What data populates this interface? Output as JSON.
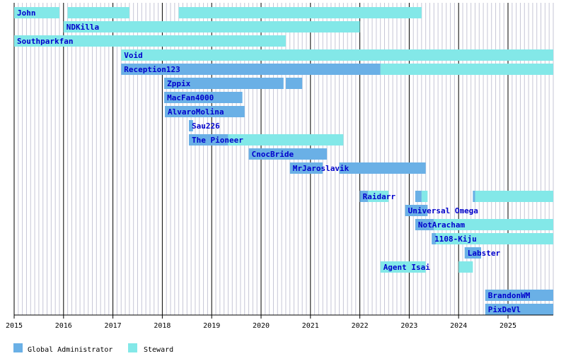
{
  "colors": {
    "background": "#ffffff",
    "gridline_month": "#c6c6d6",
    "gridline_year": "#000000",
    "global_administrator": "#6ab0e6",
    "steward": "#83e8e8",
    "label": "#0000cc"
  },
  "legend": [
    {
      "key": "global_administrator",
      "label": "Global Administrator"
    },
    {
      "key": "steward",
      "label": "Steward"
    }
  ],
  "chart_data": {
    "type": "timeline",
    "title": "",
    "xlabel": "",
    "ylabel": "",
    "x_range": [
      "2015-01-01",
      "2025-12-01"
    ],
    "x_ticks": [
      "2015",
      "2016",
      "2017",
      "2018",
      "2019",
      "2020",
      "2021",
      "2022",
      "2023",
      "2024",
      "2025"
    ],
    "grid": "monthly",
    "legend_position": "bottom-left",
    "rows": [
      {
        "name": "John",
        "spans": [
          {
            "role": "steward",
            "start": "2015-01-01",
            "end": "2015-12-01"
          },
          {
            "role": "steward",
            "start": "2016-02-01",
            "end": "2017-05-01"
          },
          {
            "role": "steward",
            "start": "2018-05-01",
            "end": "2023-04-01"
          }
        ]
      },
      {
        "name": "NDKilla",
        "spans": [
          {
            "role": "steward",
            "start": "2016-01-01",
            "end": "2022-01-01"
          }
        ]
      },
      {
        "name": "Southparkfan",
        "spans": [
          {
            "role": "steward",
            "start": "2015-01-01",
            "end": "2020-07-01"
          }
        ]
      },
      {
        "name": "Void",
        "spans": [
          {
            "role": "steward",
            "start": "2017-03-01",
            "end": "2025-12-01"
          }
        ]
      },
      {
        "name": "Reception123",
        "spans": [
          {
            "role": "global_administrator",
            "start": "2017-03-01",
            "end": "2022-06-01"
          },
          {
            "role": "steward",
            "start": "2022-06-01",
            "end": "2025-12-01"
          }
        ]
      },
      {
        "name": "Zppix",
        "spans": [
          {
            "role": "global_administrator",
            "start": "2018-01-15",
            "end": "2020-06-15"
          },
          {
            "role": "global_administrator",
            "start": "2020-07-01",
            "end": "2020-11-01"
          }
        ]
      },
      {
        "name": "MacFan4000",
        "spans": [
          {
            "role": "global_administrator",
            "start": "2018-01-15",
            "end": "2019-08-15"
          }
        ]
      },
      {
        "name": "AlvaroMolina",
        "spans": [
          {
            "role": "global_administrator",
            "start": "2018-01-20",
            "end": "2019-09-01"
          }
        ]
      },
      {
        "name": "Sau226",
        "spans": [
          {
            "role": "global_administrator",
            "start": "2018-07-15",
            "end": "2018-08-15"
          }
        ]
      },
      {
        "name": "The Pioneer",
        "spans": [
          {
            "role": "global_administrator",
            "start": "2018-07-15",
            "end": "2019-05-01"
          },
          {
            "role": "steward",
            "start": "2019-05-01",
            "end": "2021-09-01"
          }
        ]
      },
      {
        "name": "CnocBride",
        "spans": [
          {
            "role": "global_administrator",
            "start": "2019-10-01",
            "end": "2021-05-01"
          }
        ]
      },
      {
        "name": "MrJaroslavik",
        "spans": [
          {
            "role": "global_administrator",
            "start": "2020-08-01",
            "end": "2021-04-01"
          },
          {
            "role": "global_administrator",
            "start": "2021-08-01",
            "end": "2023-05-01"
          }
        ]
      },
      {
        "name": "",
        "spans": []
      },
      {
        "name": "Raidarr",
        "spans": [
          {
            "role": "global_administrator",
            "start": "2022-01-01",
            "end": "2022-03-01"
          },
          {
            "role": "steward",
            "start": "2022-03-01",
            "end": "2022-08-01"
          },
          {
            "role": "global_administrator",
            "start": "2023-02-15",
            "end": "2023-04-01"
          },
          {
            "role": "steward",
            "start": "2023-04-01",
            "end": "2023-05-15"
          },
          {
            "role": "global_administrator",
            "start": "2024-04-15",
            "end": "2024-05-01"
          },
          {
            "role": "steward",
            "start": "2024-05-01",
            "end": "2025-12-01"
          }
        ]
      },
      {
        "name": "Universal Omega",
        "spans": [
          {
            "role": "global_administrator",
            "start": "2022-12-01",
            "end": "2023-05-15"
          }
        ]
      },
      {
        "name": "NotAracham",
        "spans": [
          {
            "role": "global_administrator",
            "start": "2023-02-15",
            "end": "2023-07-01"
          },
          {
            "role": "steward",
            "start": "2023-07-01",
            "end": "2025-12-01"
          }
        ]
      },
      {
        "name": "1108-Kiju",
        "spans": [
          {
            "role": "global_administrator",
            "start": "2023-06-15",
            "end": "2023-07-15"
          },
          {
            "role": "steward",
            "start": "2023-07-15",
            "end": "2025-12-01"
          }
        ]
      },
      {
        "name": "Labster",
        "spans": [
          {
            "role": "global_administrator",
            "start": "2024-02-15",
            "end": "2024-06-15"
          }
        ]
      },
      {
        "name": "Agent Isai",
        "spans": [
          {
            "role": "steward",
            "start": "2022-06-01",
            "end": "2023-05-01"
          },
          {
            "role": "steward",
            "start": "2024-01-01",
            "end": "2024-04-15"
          }
        ]
      },
      {
        "name": "",
        "spans": []
      },
      {
        "name": "BrandonWM",
        "spans": [
          {
            "role": "global_administrator",
            "start": "2024-07-15",
            "end": "2025-12-01"
          }
        ]
      },
      {
        "name": "PixDeVl",
        "spans": [
          {
            "role": "global_administrator",
            "start": "2024-07-15",
            "end": "2025-12-01"
          }
        ]
      }
    ]
  }
}
